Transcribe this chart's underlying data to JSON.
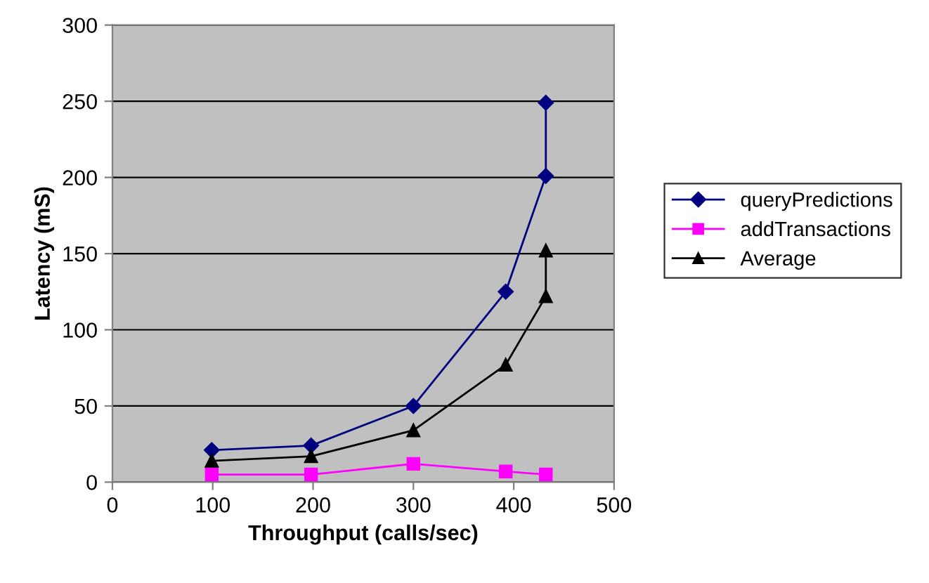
{
  "chart_data": {
    "type": "line",
    "xlabel": "Throughput (calls/sec)",
    "ylabel": "Latency (mS)",
    "xlim": [
      0,
      500
    ],
    "xticks": [
      0,
      100,
      200,
      300,
      400,
      500
    ],
    "ylim": [
      0,
      300
    ],
    "yticks": [
      0,
      50,
      100,
      150,
      200,
      250,
      300
    ],
    "grid": "y",
    "legend": "right",
    "series": [
      {
        "name": "queryPredictions",
        "color": "#000080",
        "marker": "diamond",
        "x": [
          99,
          198,
          300,
          392,
          432,
          432
        ],
        "values": [
          21,
          24,
          50,
          125,
          201,
          249
        ]
      },
      {
        "name": "addTransactions",
        "color": "#ff00ff",
        "marker": "square",
        "x": [
          99,
          198,
          300,
          392,
          432
        ],
        "values": [
          5,
          5,
          12,
          7,
          5
        ]
      },
      {
        "name": "Average",
        "color": "#000000",
        "marker": "triangle",
        "x": [
          99,
          198,
          300,
          392,
          432,
          432
        ],
        "values": [
          14,
          17,
          34,
          77,
          122,
          152
        ]
      }
    ]
  }
}
